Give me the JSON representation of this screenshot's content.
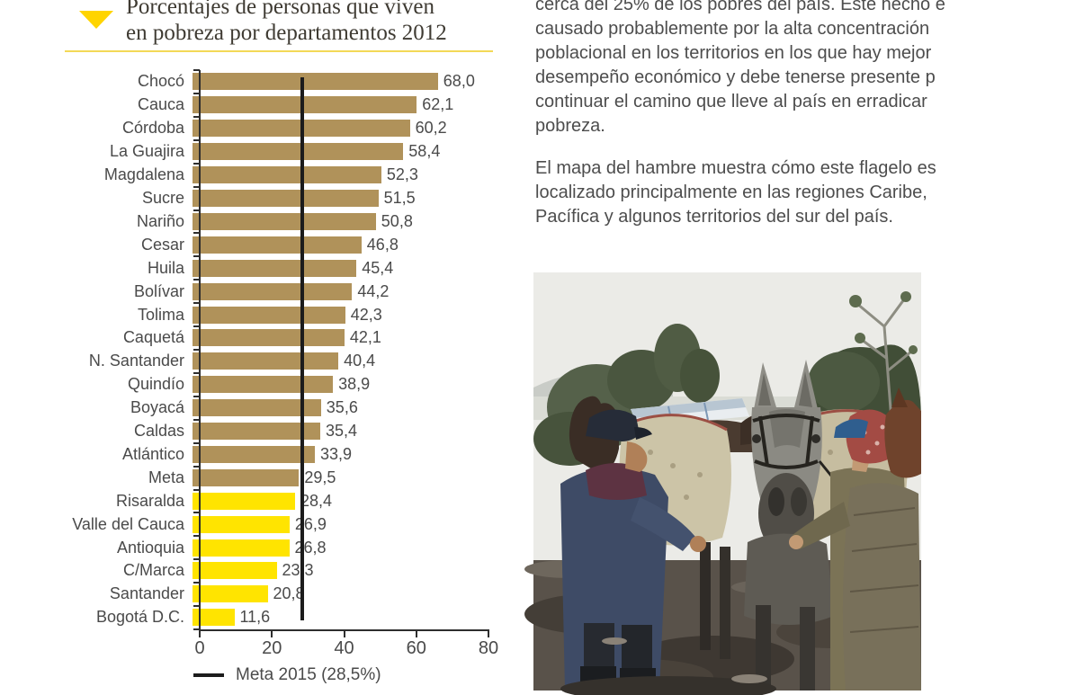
{
  "title": {
    "line1": "Porcentajes de personas que viven",
    "line2": "en pobreza por departamentos 2012"
  },
  "icons": {
    "title_marker": "triangle-down"
  },
  "colors": {
    "bar_above_meta": "#b0925a",
    "bar_below_meta": "#ffe400",
    "meta_line": "#1c1c1c",
    "accent_yellow": "#ffd400",
    "rule_yellow": "#f3d957",
    "axis": "#2e2e2e",
    "text": "#4a4a4a"
  },
  "chart_data": {
    "type": "bar",
    "orientation": "horizontal",
    "title": "Porcentajes de personas que viven en pobreza por departamentos 2012",
    "categories": [
      "Chocó",
      "Cauca",
      "Córdoba",
      "La Guajira",
      "Magdalena",
      "Sucre",
      "Nariño",
      "Cesar",
      "Huila",
      "Bolívar",
      "Tolima",
      "Caquetá",
      "N. Santander",
      "Quindío",
      "Boyacá",
      "Caldas",
      "Atlántico",
      "Meta",
      "Risaralda",
      "Valle del Cauca",
      "Antioquia",
      "C/Marca",
      "Santander",
      "Bogotá D.C."
    ],
    "values": [
      68.0,
      62.1,
      60.2,
      58.4,
      52.3,
      51.5,
      50.8,
      46.8,
      45.4,
      44.2,
      42.3,
      42.1,
      40.4,
      38.9,
      35.6,
      35.4,
      33.9,
      29.5,
      28.4,
      26.9,
      26.8,
      23.3,
      20.8,
      11.6
    ],
    "value_labels": [
      "68,0",
      "62,1",
      "60,2",
      "58,4",
      "52,3",
      "51,5",
      "50,8",
      "46,8",
      "45,4",
      "44,2",
      "42,3",
      "42,1",
      "40,4",
      "38,9",
      "35,6",
      "35,4",
      "33,9",
      "29,5",
      "28,4",
      "26,9",
      "26,8",
      "23,3",
      "20,8",
      "11,6"
    ],
    "xlim": [
      0,
      80
    ],
    "xticks": [
      "0",
      "20",
      "40",
      "60",
      "80"
    ],
    "grid": false,
    "legend_position": "bottom",
    "reference_line": {
      "value": 28.5,
      "label": "Meta 2015 (28,5%)"
    },
    "bar_color_rule": "bars with value below 28.5 are yellow, others tan"
  },
  "article": {
    "paragraph1_lines": [
      "cerca del 25% de los pobres del país. Este hecho e",
      "causado probablemente por la alta concentración",
      "poblacional en los territorios en los que hay mejor",
      "desempeño económico y debe tenerse presente p",
      "continuar el camino que lleve al país en erradicar",
      "pobreza."
    ],
    "paragraph2_lines": [
      "El mapa del hambre muestra cómo este flagelo es",
      "localizado principalmente en las regiones Caribe,",
      "Pacífica y algunos territorios del sur del país."
    ]
  }
}
